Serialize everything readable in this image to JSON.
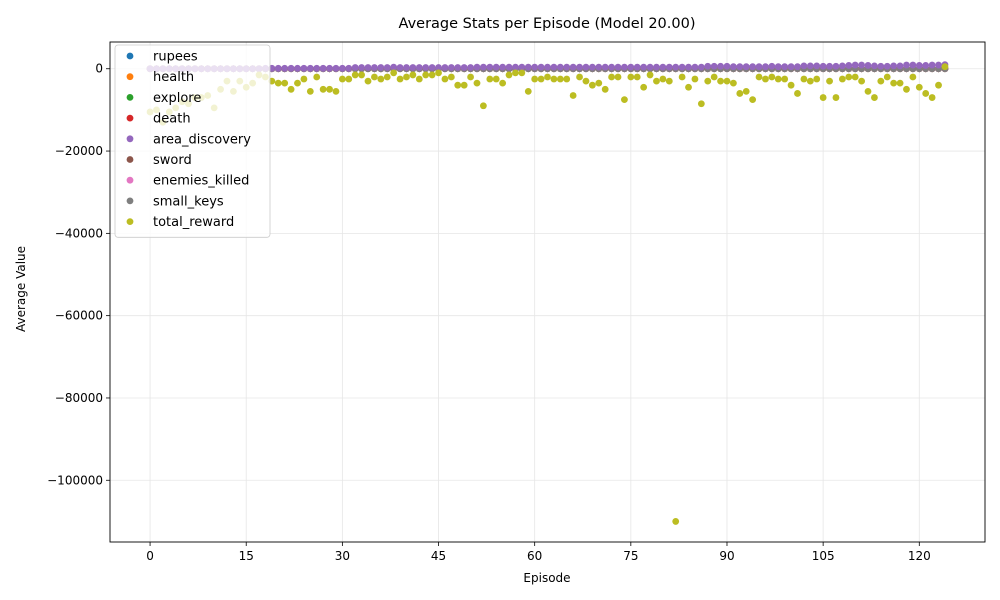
{
  "chart_data": {
    "type": "scatter",
    "title": "Average Stats per Episode (Model 20.00)",
    "xlabel": "Episode",
    "ylabel": "Average Value",
    "xlim": [
      -6.25,
      130.25
    ],
    "ylim": [
      -115000,
      6500
    ],
    "xticks": [
      0,
      15,
      30,
      45,
      60,
      75,
      90,
      105,
      120
    ],
    "yticks": [
      0,
      -20000,
      -40000,
      -60000,
      -80000,
      -100000
    ],
    "ytick_labels": [
      "0",
      "−20000",
      "−40000",
      "−60000",
      "−80000",
      "−100000"
    ],
    "grid": true,
    "legend_position": "upper-left",
    "series": [
      {
        "name": "rupees",
        "color": "#1f77b4"
      },
      {
        "name": "health",
        "color": "#ff7f0e"
      },
      {
        "name": "explore",
        "color": "#2ca02c"
      },
      {
        "name": "death",
        "color": "#d62728"
      },
      {
        "name": "area_discovery",
        "color": "#9467bd"
      },
      {
        "name": "sword",
        "color": "#8c564b"
      },
      {
        "name": "enemies_killed",
        "color": "#e377c2"
      },
      {
        "name": "small_keys",
        "color": "#7f7f7f"
      },
      {
        "name": "total_reward",
        "color": "#bcbd22"
      }
    ],
    "x": [
      0,
      1,
      2,
      3,
      4,
      5,
      6,
      7,
      8,
      9,
      10,
      11,
      12,
      13,
      14,
      15,
      16,
      17,
      18,
      19,
      20,
      21,
      22,
      23,
      24,
      25,
      26,
      27,
      28,
      29,
      30,
      31,
      32,
      33,
      34,
      35,
      36,
      37,
      38,
      39,
      40,
      41,
      42,
      43,
      44,
      45,
      46,
      47,
      48,
      49,
      50,
      51,
      52,
      53,
      54,
      55,
      56,
      57,
      58,
      59,
      60,
      61,
      62,
      63,
      64,
      65,
      66,
      67,
      68,
      69,
      70,
      71,
      72,
      73,
      74,
      75,
      76,
      77,
      78,
      79,
      80,
      81,
      82,
      83,
      84,
      85,
      86,
      87,
      88,
      89,
      90,
      91,
      92,
      93,
      94,
      95,
      96,
      97,
      98,
      99,
      100,
      101,
      102,
      103,
      104,
      105,
      106,
      107,
      108,
      109,
      110,
      111,
      112,
      113,
      114,
      115,
      116,
      117,
      118,
      119,
      120,
      121,
      122,
      123,
      124
    ],
    "total_reward": [
      -10500,
      -10000,
      -13000,
      -10500,
      -9500,
      -8000,
      -8500,
      -7000,
      -7000,
      -6500,
      -9500,
      -5000,
      -3000,
      -5500,
      -3000,
      -4500,
      -3500,
      -1500,
      -2000,
      -3000,
      -3500,
      -3500,
      -5000,
      -3500,
      -2500,
      -5500,
      -2000,
      -5000,
      -5000,
      -5500,
      -2500,
      -2500,
      -1500,
      -1500,
      -3000,
      -2000,
      -2500,
      -2000,
      -1000,
      -2500,
      -2000,
      -1500,
      -2500,
      -1500,
      -1500,
      -1000,
      -2500,
      -2000,
      -4000,
      -4000,
      -2000,
      -3500,
      -9000,
      -2500,
      -2500,
      -3500,
      -1500,
      -1000,
      -1000,
      -5500,
      -2500,
      -2500,
      -2000,
      -2500,
      -2500,
      -2500,
      -6500,
      -2000,
      -3000,
      -4000,
      -3500,
      -5000,
      -2000,
      -2000,
      -7500,
      -2000,
      -2000,
      -4500,
      -1500,
      -3000,
      -2500,
      -3000,
      -110000,
      -2000,
      -4500,
      -2500,
      -8500,
      -3000,
      -2000,
      -3000,
      -3000,
      -3500,
      -6000,
      -5500,
      -7500,
      -2000,
      -2500,
      -2000,
      -2500,
      -2500,
      -4000,
      -6000,
      -2500,
      -3000,
      -2500,
      -7000,
      -3000,
      -7000,
      -2500,
      -2000,
      -2000,
      -3000,
      -5500,
      -7000,
      -3000,
      -2000,
      -3500,
      -3500,
      -5000,
      -2000,
      -4500,
      -6000,
      -7000,
      -4000,
      500
    ],
    "area_discovery": [
      0,
      0,
      0,
      0,
      0,
      0,
      0,
      0,
      0,
      0,
      0,
      0,
      0,
      0,
      0,
      0,
      0,
      0,
      100,
      100,
      100,
      100,
      100,
      100,
      100,
      100,
      100,
      100,
      100,
      100,
      100,
      100,
      300,
      300,
      300,
      300,
      300,
      300,
      400,
      300,
      300,
      300,
      300,
      300,
      300,
      300,
      300,
      300,
      300,
      300,
      300,
      400,
      400,
      400,
      400,
      400,
      400,
      400,
      400,
      400,
      400,
      400,
      400,
      400,
      400,
      400,
      400,
      400,
      400,
      400,
      400,
      400,
      400,
      400,
      400,
      400,
      400,
      400,
      400,
      400,
      400,
      400,
      400,
      400,
      400,
      400,
      400,
      600,
      600,
      600,
      600,
      500,
      500,
      500,
      500,
      500,
      500,
      600,
      500,
      500,
      500,
      500,
      700,
      700,
      700,
      600,
      600,
      600,
      700,
      800,
      900,
      900,
      800,
      700,
      600,
      600,
      700,
      700,
      900,
      900,
      800,
      800,
      900,
      900,
      1000
    ],
    "other_series_value": 0,
    "faded_points_note": ""
  }
}
